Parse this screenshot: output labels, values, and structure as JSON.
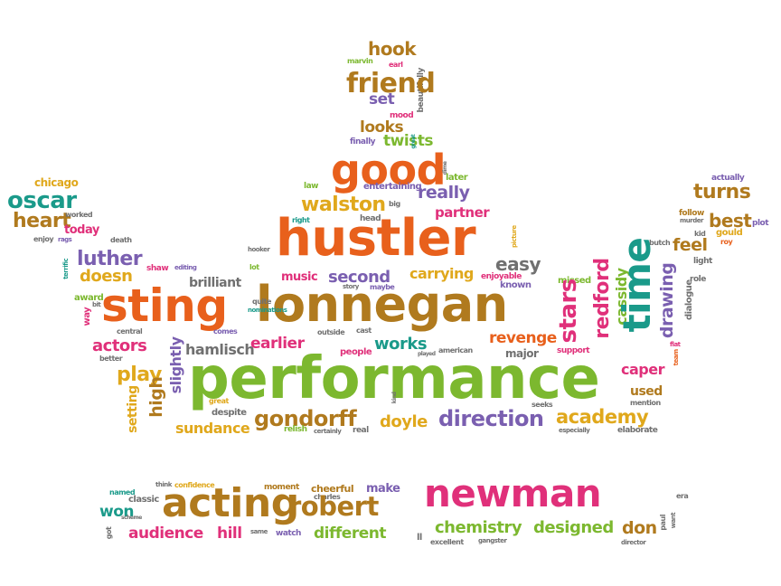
{
  "colors": {
    "orange": "#e8601c",
    "green": "#7cb82f",
    "magenta": "#e0307a",
    "purple": "#7a5fb0",
    "olive": "#b07a1e",
    "teal": "#1a9a8a",
    "yellow": "#e0a81c",
    "gray": "#707070"
  },
  "words": [
    {
      "text": "hook",
      "color": "olive"
    },
    {
      "text": "marvin",
      "color": "green"
    },
    {
      "text": "earl",
      "color": "magenta"
    },
    {
      "text": "beautifully",
      "color": "gray"
    },
    {
      "text": "friend",
      "color": "olive"
    },
    {
      "text": "set",
      "color": "purple"
    },
    {
      "text": "mood",
      "color": "magenta"
    },
    {
      "text": "looks",
      "color": "olive"
    },
    {
      "text": "finally",
      "color": "purple"
    },
    {
      "text": "twists",
      "color": "green"
    },
    {
      "text": "great",
      "color": "teal"
    },
    {
      "text": "good",
      "color": "orange"
    },
    {
      "text": "later",
      "color": "green"
    },
    {
      "text": "dime",
      "color": "gray"
    },
    {
      "text": "chicago",
      "color": "yellow"
    },
    {
      "text": "oscar",
      "color": "teal"
    },
    {
      "text": "heart",
      "color": "olive"
    },
    {
      "text": "worked",
      "color": "gray"
    },
    {
      "text": "death",
      "color": "gray"
    },
    {
      "text": "today",
      "color": "magenta"
    },
    {
      "text": "enjoy",
      "color": "gray"
    },
    {
      "text": "rags",
      "color": "purple"
    },
    {
      "text": "entertaining",
      "color": "purple"
    },
    {
      "text": "law",
      "color": "green"
    },
    {
      "text": "really",
      "color": "purple"
    },
    {
      "text": "walston",
      "color": "yellow"
    },
    {
      "text": "big",
      "color": "gray"
    },
    {
      "text": "partner",
      "color": "magenta"
    },
    {
      "text": "right",
      "color": "teal"
    },
    {
      "text": "head",
      "color": "gray"
    },
    {
      "text": "hustler",
      "color": "orange"
    },
    {
      "text": "actually",
      "color": "purple"
    },
    {
      "text": "turns",
      "color": "olive"
    },
    {
      "text": "follow",
      "color": "olive"
    },
    {
      "text": "murder",
      "color": "gray"
    },
    {
      "text": "best",
      "color": "olive"
    },
    {
      "text": "kid",
      "color": "gray"
    },
    {
      "text": "gould",
      "color": "yellow"
    },
    {
      "text": "plot",
      "color": "purple"
    },
    {
      "text": "roy",
      "color": "orange"
    },
    {
      "text": "butch",
      "color": "gray"
    },
    {
      "text": "feel",
      "color": "olive"
    },
    {
      "text": "light",
      "color": "gray"
    },
    {
      "text": "terrific",
      "color": "teal"
    },
    {
      "text": "luther",
      "color": "purple"
    },
    {
      "text": "doesn",
      "color": "yellow"
    },
    {
      "text": "shaw",
      "color": "magenta"
    },
    {
      "text": "editing",
      "color": "purple"
    },
    {
      "text": "brilliant",
      "color": "gray"
    },
    {
      "text": "hooker",
      "color": "gray"
    },
    {
      "text": "lot",
      "color": "green"
    },
    {
      "text": "music",
      "color": "magenta"
    },
    {
      "text": "second",
      "color": "purple"
    },
    {
      "text": "carrying",
      "color": "yellow"
    },
    {
      "text": "easy",
      "color": "gray"
    },
    {
      "text": "picture",
      "color": "yellow"
    },
    {
      "text": "enjoyable",
      "color": "magenta"
    },
    {
      "text": "known",
      "color": "purple"
    },
    {
      "text": "missed",
      "color": "green"
    },
    {
      "text": "role",
      "color": "gray"
    },
    {
      "text": "award",
      "color": "green"
    },
    {
      "text": "bit",
      "color": "gray"
    },
    {
      "text": "way",
      "color": "magenta"
    },
    {
      "text": "sting",
      "color": "orange"
    },
    {
      "text": "lonnegan",
      "color": "olive"
    },
    {
      "text": "story",
      "color": "gray"
    },
    {
      "text": "maybe",
      "color": "purple"
    },
    {
      "text": "quite",
      "color": "gray"
    },
    {
      "text": "nominations",
      "color": "teal"
    },
    {
      "text": "redford",
      "color": "magenta"
    },
    {
      "text": "cassidy",
      "color": "green"
    },
    {
      "text": "stars",
      "color": "magenta"
    },
    {
      "text": "time",
      "color": "teal"
    },
    {
      "text": "drawing",
      "color": "purple"
    },
    {
      "text": "dialogue",
      "color": "gray"
    },
    {
      "text": "central",
      "color": "gray"
    },
    {
      "text": "actors",
      "color": "magenta"
    },
    {
      "text": "better",
      "color": "gray"
    },
    {
      "text": "comes",
      "color": "purple"
    },
    {
      "text": "hamlisch",
      "color": "gray"
    },
    {
      "text": "slightly",
      "color": "purple"
    },
    {
      "text": "earlier",
      "color": "magenta"
    },
    {
      "text": "outside",
      "color": "gray"
    },
    {
      "text": "cast",
      "color": "gray"
    },
    {
      "text": "works",
      "color": "teal"
    },
    {
      "text": "people",
      "color": "magenta"
    },
    {
      "text": "played",
      "color": "gray"
    },
    {
      "text": "american",
      "color": "gray"
    },
    {
      "text": "revenge",
      "color": "orange"
    },
    {
      "text": "major",
      "color": "gray"
    },
    {
      "text": "support",
      "color": "magenta"
    },
    {
      "text": "flat",
      "color": "magenta"
    },
    {
      "text": "team",
      "color": "orange"
    },
    {
      "text": "caper",
      "color": "magenta"
    },
    {
      "text": "play",
      "color": "yellow"
    },
    {
      "text": "performance",
      "color": "green"
    },
    {
      "text": "setting",
      "color": "yellow"
    },
    {
      "text": "high",
      "color": "olive"
    },
    {
      "text": "great",
      "color": "yellow"
    },
    {
      "text": "despite",
      "color": "gray"
    },
    {
      "text": "kind",
      "color": "gray"
    },
    {
      "text": "seeks",
      "color": "gray"
    },
    {
      "text": "used",
      "color": "olive"
    },
    {
      "text": "mention",
      "color": "gray"
    },
    {
      "text": "gondorff",
      "color": "olive"
    },
    {
      "text": "doyle",
      "color": "yellow"
    },
    {
      "text": "direction",
      "color": "purple"
    },
    {
      "text": "academy",
      "color": "yellow"
    },
    {
      "text": "sundance",
      "color": "yellow"
    },
    {
      "text": "relish",
      "color": "green"
    },
    {
      "text": "certainly",
      "color": "gray"
    },
    {
      "text": "real",
      "color": "gray"
    },
    {
      "text": "especially",
      "color": "gray"
    },
    {
      "text": "elaborate",
      "color": "gray"
    },
    {
      "text": "named",
      "color": "teal"
    },
    {
      "text": "think",
      "color": "gray"
    },
    {
      "text": "confidence",
      "color": "yellow"
    },
    {
      "text": "moment",
      "color": "olive"
    },
    {
      "text": "cheerful",
      "color": "olive"
    },
    {
      "text": "make",
      "color": "purple"
    },
    {
      "text": "era",
      "color": "gray"
    },
    {
      "text": "classic",
      "color": "gray"
    },
    {
      "text": "charles",
      "color": "gray"
    },
    {
      "text": "want",
      "color": "gray"
    },
    {
      "text": "won",
      "color": "teal"
    },
    {
      "text": "scheme",
      "color": "gray"
    },
    {
      "text": "got",
      "color": "gray"
    },
    {
      "text": "acting",
      "color": "olive"
    },
    {
      "text": "robert",
      "color": "olive"
    },
    {
      "text": "newman",
      "color": "magenta"
    },
    {
      "text": "paul",
      "color": "gray"
    },
    {
      "text": "audience",
      "color": "magenta"
    },
    {
      "text": "hill",
      "color": "magenta"
    },
    {
      "text": "same",
      "color": "gray"
    },
    {
      "text": "watch",
      "color": "purple"
    },
    {
      "text": "different",
      "color": "green"
    },
    {
      "text": "ll",
      "color": "gray"
    },
    {
      "text": "chemistry",
      "color": "green"
    },
    {
      "text": "designed",
      "color": "green"
    },
    {
      "text": "don",
      "color": "olive"
    },
    {
      "text": "excellent",
      "color": "gray"
    },
    {
      "text": "gangster",
      "color": "gray"
    },
    {
      "text": "director",
      "color": "gray"
    }
  ]
}
